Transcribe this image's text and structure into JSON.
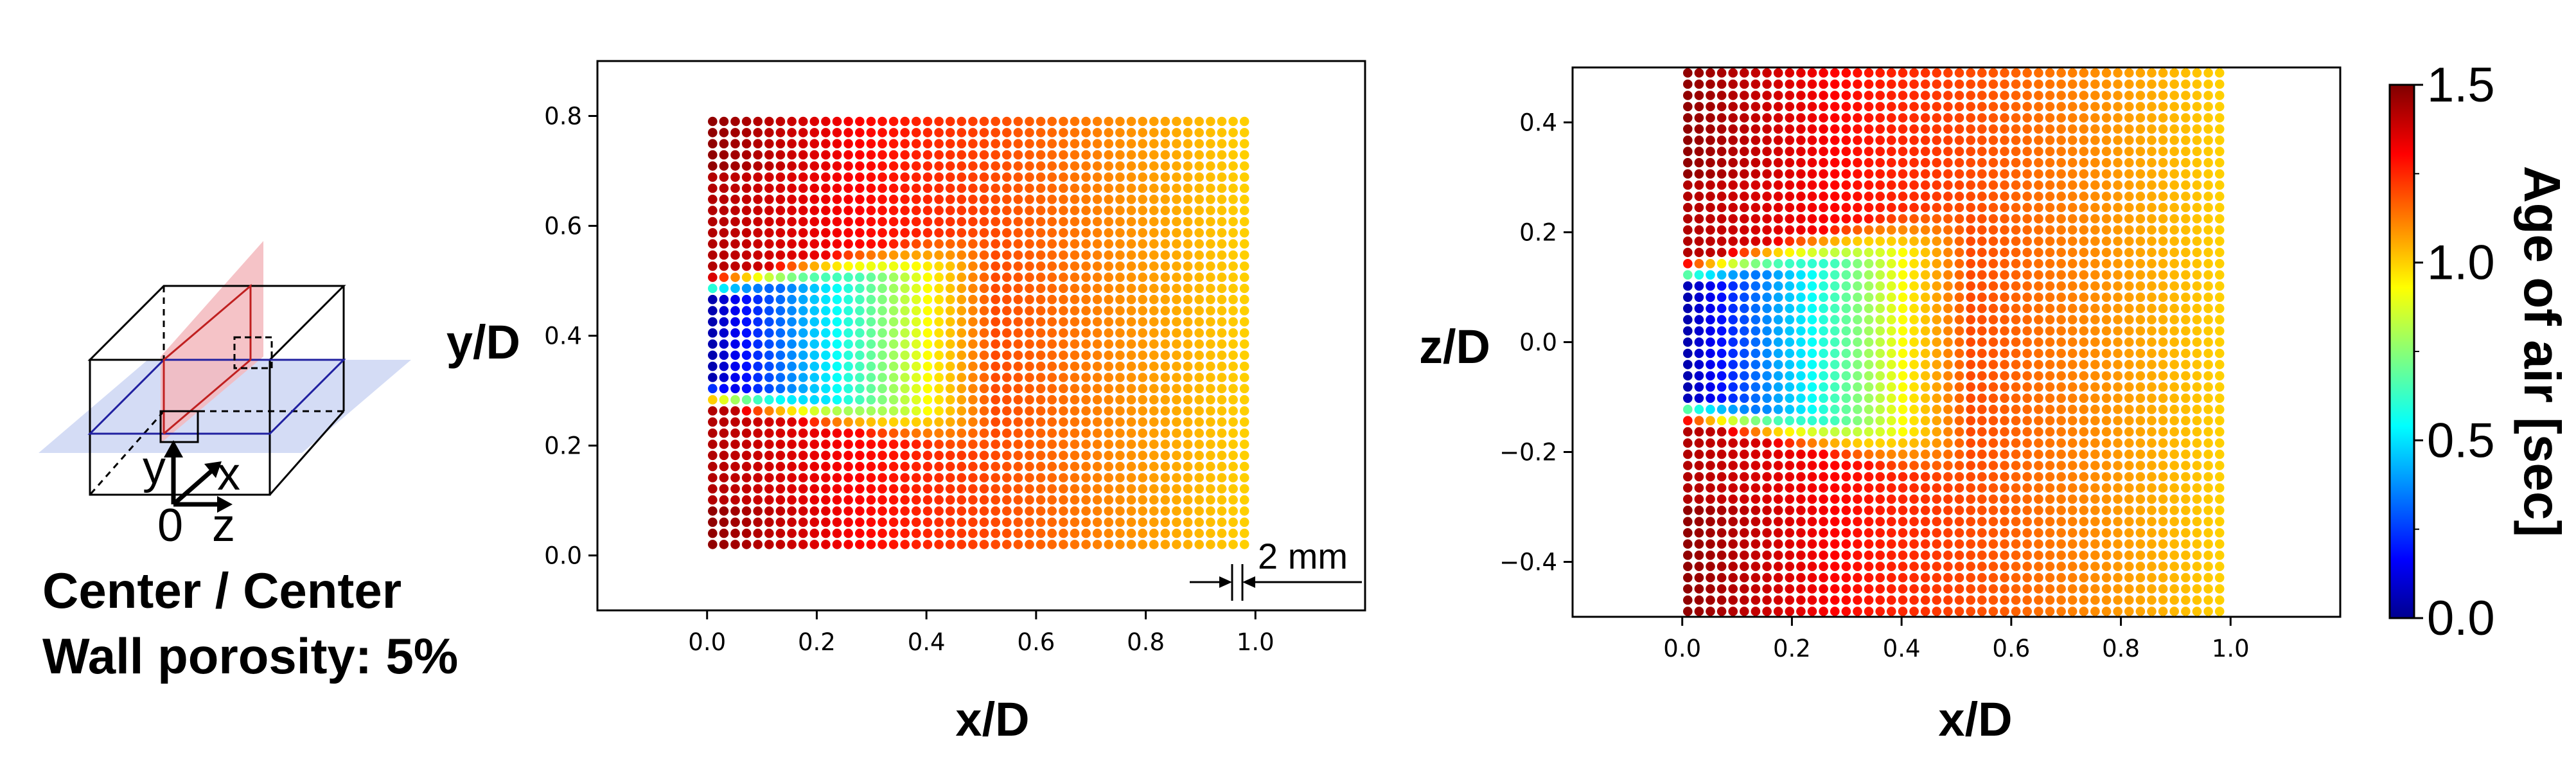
{
  "schematic": {
    "axis_y": "y",
    "axis_x": "x",
    "axis_origin": "0",
    "axis_z": "z",
    "title_line1": "Center / Center",
    "title_line2": "Wall porosity: 5%"
  },
  "colorbar": {
    "label": "Age of air [sec]",
    "min": 0,
    "max": 1.5,
    "ticks": [
      "0.0",
      "0.5",
      "1.0",
      "1.5"
    ],
    "colormap": "jet"
  },
  "chart_data": [
    {
      "type": "scatter",
      "xlabel": "x/D",
      "ylabel": "y/D",
      "xlim": [
        -0.2,
        1.2
      ],
      "ylim": [
        -0.1,
        0.9
      ],
      "xticks": [
        "0.0",
        "0.2",
        "0.4",
        "0.6",
        "0.8",
        "1.0"
      ],
      "yticks": [
        "0.0",
        "0.2",
        "0.4",
        "0.6",
        "0.8"
      ],
      "x_range": [
        0.01,
        0.98
      ],
      "y_range": [
        0.02,
        0.79
      ],
      "grid_points": [
        48,
        39
      ],
      "color_variable": "Age of air [sec]",
      "jet_center": 0.39,
      "jet_halfwidth": 0.08,
      "annotation": "2 mm"
    },
    {
      "type": "scatter",
      "xlabel": "x/D",
      "ylabel": "z/D",
      "xlim": [
        -0.2,
        1.2
      ],
      "ylim": [
        -0.5,
        0.5
      ],
      "xticks": [
        "0.0",
        "0.2",
        "0.4",
        "0.6",
        "0.8",
        "1.0"
      ],
      "yticks": [
        "0.4",
        "0.2",
        "0.0",
        "−0.2",
        "−0.4"
      ],
      "x_range": [
        0.01,
        0.98
      ],
      "y_range": [
        -0.49,
        0.49
      ],
      "grid_points": [
        48,
        49
      ],
      "color_variable": "Age of air [sec]",
      "jet_center": 0.0,
      "jet_halfwidth": 0.1
    }
  ]
}
